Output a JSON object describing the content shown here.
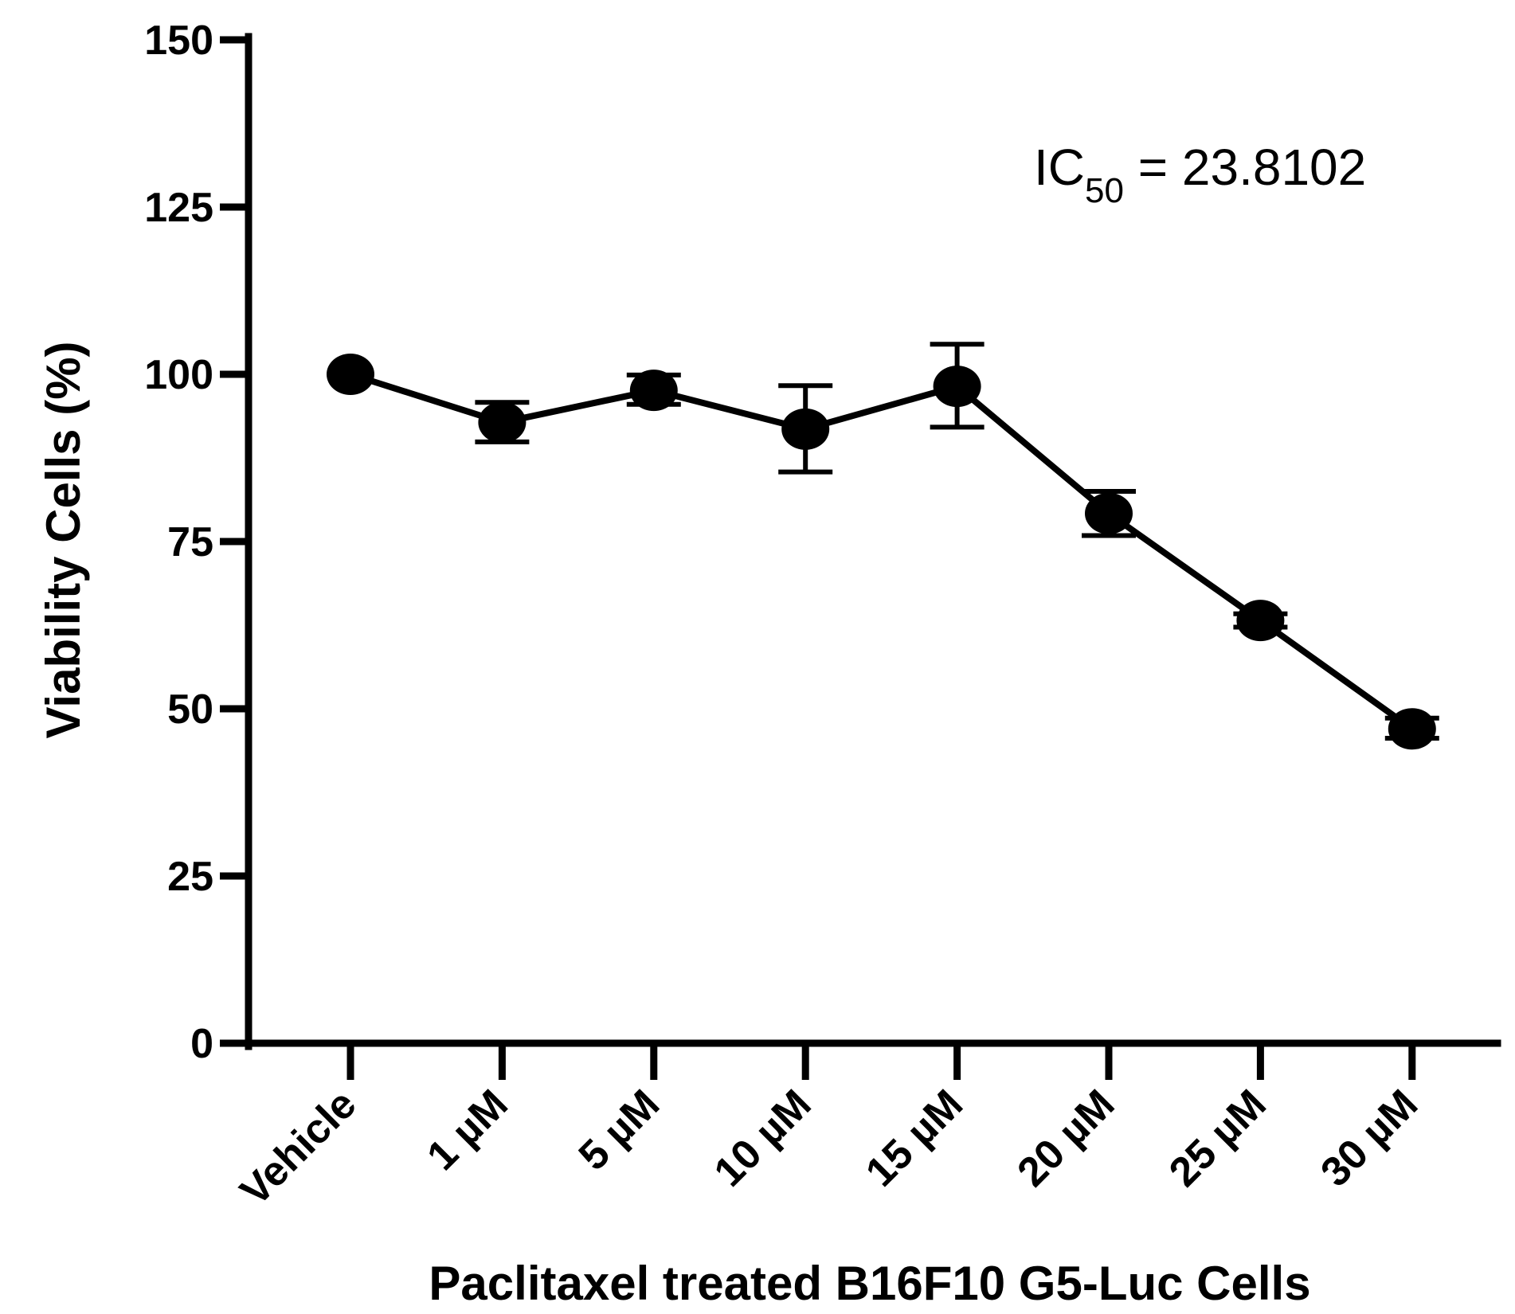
{
  "chart_data": {
    "type": "line",
    "title": "",
    "xlabel": "Paclitaxel treated B16F10 G5-Luc Cells",
    "ylabel": "Viability Cells (%)",
    "ylim": [
      0,
      150
    ],
    "yticks": [
      0,
      25,
      50,
      75,
      100,
      125,
      150
    ],
    "ytick_labels": [
      "0",
      "25",
      "50",
      "75",
      "100",
      "125",
      "150"
    ],
    "grid": false,
    "categories": [
      "Vehicle",
      "1 µM",
      "5 µM",
      "10 µM",
      "15 µM",
      "20 µM",
      "25 µM",
      "30 µM"
    ],
    "series": [
      {
        "name": "Viability",
        "color": "#000000",
        "values": [
          100,
          92.8,
          97.6,
          91.8,
          98.2,
          79.2,
          63.2,
          47.0
        ],
        "error_low": [
          100,
          89.9,
          95.5,
          85.4,
          92.1,
          75.9,
          62.2,
          45.6
        ],
        "error_high": [
          100,
          95.8,
          99.9,
          98.3,
          104.5,
          82.5,
          64.2,
          48.6
        ]
      }
    ],
    "annotation": {
      "prefix": "IC",
      "subscript": "50",
      "suffix": " = 23.8102"
    }
  }
}
